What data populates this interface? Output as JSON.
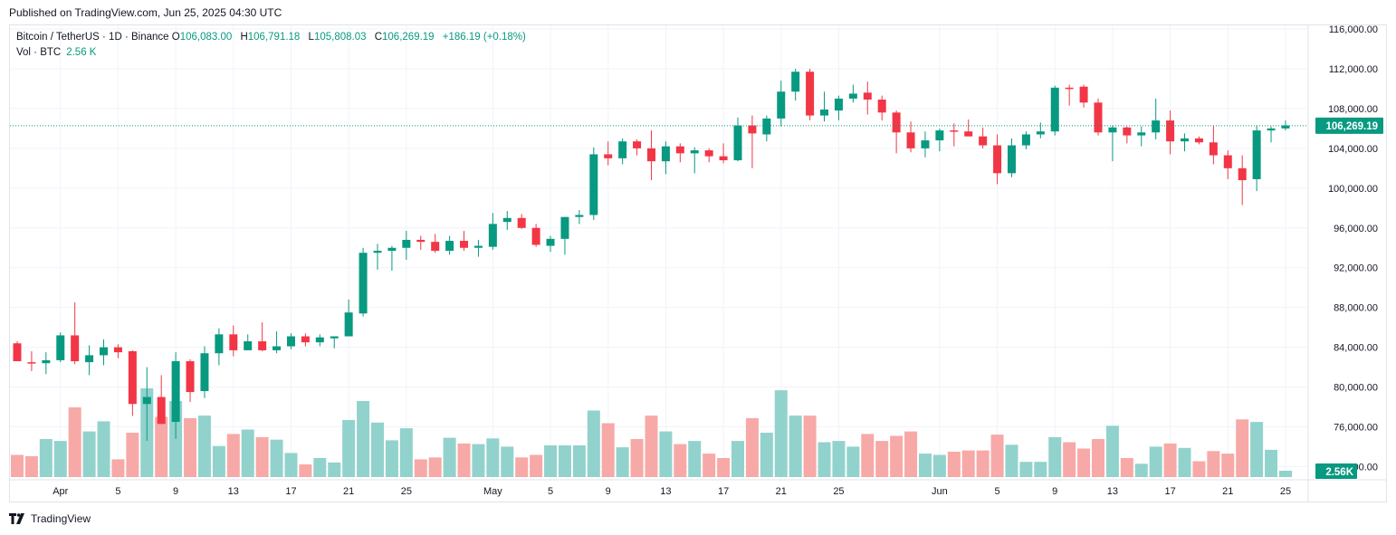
{
  "header": {
    "published": "Published on TradingView.com, Jun 25, 2025 04:30 UTC"
  },
  "legend": {
    "symbol": "Bitcoin / TetherUS · 1D · Binance",
    "o_label": "O",
    "o_value": "106,083.00",
    "h_label": "H",
    "h_value": "106,791.18",
    "l_label": "L",
    "l_value": "105,808.03",
    "c_label": "C",
    "c_value": "106,269.19",
    "change": "+186.19 (+0.18%)",
    "vol_label": "Vol · BTC",
    "vol_value": "2.56 K"
  },
  "footer": {
    "brand": "TradingView",
    "logo_icon": "tradingview-logo-icon"
  },
  "colors": {
    "up": "#089981",
    "down": "#f23645",
    "vol_up": "#92d2cc",
    "vol_down": "#f7a9a7"
  },
  "chart_data": {
    "type": "candlestick",
    "price_axis": {
      "ticks": [
        72000,
        76000,
        80000,
        84000,
        88000,
        92000,
        96000,
        100000,
        104000,
        108000,
        112000,
        116000
      ],
      "tick_labels": [
        "72,000.00",
        "76,000.00",
        "80,000.00",
        "84,000.00",
        "88,000.00",
        "92,000.00",
        "96,000.00",
        "100,000.00",
        "104,000.00",
        "108,000.00",
        "112,000.00",
        "116,000.00"
      ],
      "last_price": 106269.19,
      "last_price_label": "106,269.19",
      "last_volume_label": "2.56K"
    },
    "x_axis": {
      "labels": [
        {
          "index": 3,
          "text": "Apr"
        },
        {
          "index": 7,
          "text": "5"
        },
        {
          "index": 11,
          "text": "9"
        },
        {
          "index": 15,
          "text": "13"
        },
        {
          "index": 19,
          "text": "17"
        },
        {
          "index": 23,
          "text": "21"
        },
        {
          "index": 27,
          "text": "25"
        },
        {
          "index": 33,
          "text": "May"
        },
        {
          "index": 37,
          "text": "5"
        },
        {
          "index": 41,
          "text": "9"
        },
        {
          "index": 45,
          "text": "13"
        },
        {
          "index": 49,
          "text": "17"
        },
        {
          "index": 53,
          "text": "21"
        },
        {
          "index": 57,
          "text": "25"
        },
        {
          "index": 64,
          "text": "Jun"
        },
        {
          "index": 68,
          "text": "5"
        },
        {
          "index": 72,
          "text": "9"
        },
        {
          "index": 76,
          "text": "13"
        },
        {
          "index": 80,
          "text": "17"
        },
        {
          "index": 84,
          "text": "21"
        },
        {
          "index": 88,
          "text": "25"
        }
      ]
    },
    "candles": [
      {
        "o": 84400,
        "h": 84600,
        "l": 82600,
        "c": 82600,
        "v": 0.35
      },
      {
        "o": 82500,
        "h": 83600,
        "l": 81600,
        "c": 82400,
        "v": 0.33
      },
      {
        "o": 82400,
        "h": 83500,
        "l": 81300,
        "c": 82700,
        "v": 0.6
      },
      {
        "o": 82700,
        "h": 85500,
        "l": 82500,
        "c": 85200,
        "v": 0.57
      },
      {
        "o": 85200,
        "h": 88500,
        "l": 82300,
        "c": 82600,
        "v": 1.1
      },
      {
        "o": 82500,
        "h": 84200,
        "l": 81200,
        "c": 83200,
        "v": 0.72
      },
      {
        "o": 83200,
        "h": 84800,
        "l": 82200,
        "c": 84000,
        "v": 0.88
      },
      {
        "o": 84000,
        "h": 84300,
        "l": 82900,
        "c": 83500,
        "v": 0.28
      },
      {
        "o": 83600,
        "h": 83700,
        "l": 77100,
        "c": 78300,
        "v": 0.7
      },
      {
        "o": 78300,
        "h": 82000,
        "l": 74600,
        "c": 79000,
        "v": 1.4
      },
      {
        "o": 79000,
        "h": 81200,
        "l": 76300,
        "c": 76300,
        "v": 0.95
      },
      {
        "o": 76500,
        "h": 83500,
        "l": 74800,
        "c": 82600,
        "v": 1.2
      },
      {
        "o": 82600,
        "h": 82800,
        "l": 78500,
        "c": 79500,
        "v": 0.93
      },
      {
        "o": 79600,
        "h": 84100,
        "l": 78900,
        "c": 83400,
        "v": 0.97
      },
      {
        "o": 83400,
        "h": 85900,
        "l": 82200,
        "c": 85300,
        "v": 0.49
      },
      {
        "o": 85300,
        "h": 86200,
        "l": 83100,
        "c": 83700,
        "v": 0.68
      },
      {
        "o": 83700,
        "h": 85300,
        "l": 83700,
        "c": 84600,
        "v": 0.75
      },
      {
        "o": 84600,
        "h": 86500,
        "l": 83600,
        "c": 83700,
        "v": 0.63
      },
      {
        "o": 83700,
        "h": 85600,
        "l": 83400,
        "c": 84100,
        "v": 0.59
      },
      {
        "o": 84100,
        "h": 85400,
        "l": 83800,
        "c": 85100,
        "v": 0.38
      },
      {
        "o": 85100,
        "h": 85400,
        "l": 84100,
        "c": 84500,
        "v": 0.2
      },
      {
        "o": 84500,
        "h": 85300,
        "l": 84100,
        "c": 85000,
        "v": 0.3
      },
      {
        "o": 84900,
        "h": 85100,
        "l": 83900,
        "c": 85100,
        "v": 0.23
      },
      {
        "o": 85100,
        "h": 88800,
        "l": 85100,
        "c": 87500,
        "v": 0.9
      },
      {
        "o": 87400,
        "h": 94000,
        "l": 87100,
        "c": 93500,
        "v": 1.2
      },
      {
        "o": 93500,
        "h": 94400,
        "l": 91800,
        "c": 93700,
        "v": 0.86
      },
      {
        "o": 93700,
        "h": 94200,
        "l": 91700,
        "c": 94000,
        "v": 0.58
      },
      {
        "o": 94000,
        "h": 95700,
        "l": 92800,
        "c": 94800,
        "v": 0.77
      },
      {
        "o": 94800,
        "h": 95200,
        "l": 93800,
        "c": 94600,
        "v": 0.28
      },
      {
        "o": 94600,
        "h": 95400,
        "l": 93500,
        "c": 93700,
        "v": 0.31
      },
      {
        "o": 93700,
        "h": 95200,
        "l": 93300,
        "c": 94700,
        "v": 0.62
      },
      {
        "o": 94700,
        "h": 95700,
        "l": 93700,
        "c": 94000,
        "v": 0.53
      },
      {
        "o": 94000,
        "h": 94800,
        "l": 93100,
        "c": 94200,
        "v": 0.52
      },
      {
        "o": 94100,
        "h": 97500,
        "l": 93800,
        "c": 96400,
        "v": 0.61
      },
      {
        "o": 96600,
        "h": 97700,
        "l": 95800,
        "c": 97000,
        "v": 0.48
      },
      {
        "o": 97000,
        "h": 97400,
        "l": 95900,
        "c": 96000,
        "v": 0.31
      },
      {
        "o": 96000,
        "h": 96400,
        "l": 94100,
        "c": 94300,
        "v": 0.35
      },
      {
        "o": 94200,
        "h": 95200,
        "l": 93600,
        "c": 94900,
        "v": 0.5
      },
      {
        "o": 94900,
        "h": 97100,
        "l": 93300,
        "c": 97100,
        "v": 0.5
      },
      {
        "o": 97100,
        "h": 97800,
        "l": 96400,
        "c": 97300,
        "v": 0.5
      },
      {
        "o": 97300,
        "h": 104100,
        "l": 96800,
        "c": 103400,
        "v": 1.05
      },
      {
        "o": 103400,
        "h": 104700,
        "l": 102300,
        "c": 103000,
        "v": 0.85
      },
      {
        "o": 103000,
        "h": 105000,
        "l": 102400,
        "c": 104700,
        "v": 0.47
      },
      {
        "o": 104700,
        "h": 104900,
        "l": 103300,
        "c": 104000,
        "v": 0.6
      },
      {
        "o": 104000,
        "h": 105800,
        "l": 100800,
        "c": 102700,
        "v": 0.97
      },
      {
        "o": 102700,
        "h": 104700,
        "l": 101400,
        "c": 104200,
        "v": 0.72
      },
      {
        "o": 104200,
        "h": 104500,
        "l": 102600,
        "c": 103500,
        "v": 0.52
      },
      {
        "o": 103500,
        "h": 104100,
        "l": 101500,
        "c": 103800,
        "v": 0.57
      },
      {
        "o": 103800,
        "h": 104000,
        "l": 102600,
        "c": 103200,
        "v": 0.37
      },
      {
        "o": 103200,
        "h": 104500,
        "l": 102500,
        "c": 102800,
        "v": 0.3
      },
      {
        "o": 102800,
        "h": 107100,
        "l": 102700,
        "c": 106300,
        "v": 0.57
      },
      {
        "o": 106300,
        "h": 107300,
        "l": 102000,
        "c": 105500,
        "v": 0.93
      },
      {
        "o": 105400,
        "h": 107300,
        "l": 104700,
        "c": 107000,
        "v": 0.7
      },
      {
        "o": 107000,
        "h": 110800,
        "l": 106200,
        "c": 109700,
        "v": 1.37
      },
      {
        "o": 109700,
        "h": 112000,
        "l": 108800,
        "c": 111700,
        "v": 0.97
      },
      {
        "o": 111700,
        "h": 112000,
        "l": 106800,
        "c": 107300,
        "v": 0.97
      },
      {
        "o": 107300,
        "h": 109700,
        "l": 106700,
        "c": 107900,
        "v": 0.55
      },
      {
        "o": 107800,
        "h": 109300,
        "l": 106800,
        "c": 109000,
        "v": 0.57
      },
      {
        "o": 109000,
        "h": 110400,
        "l": 108600,
        "c": 109500,
        "v": 0.48
      },
      {
        "o": 109600,
        "h": 110700,
        "l": 107400,
        "c": 108900,
        "v": 0.68
      },
      {
        "o": 108900,
        "h": 109300,
        "l": 106800,
        "c": 107600,
        "v": 0.57
      },
      {
        "o": 107600,
        "h": 107800,
        "l": 103500,
        "c": 105600,
        "v": 0.65
      },
      {
        "o": 105600,
        "h": 106700,
        "l": 103600,
        "c": 104000,
        "v": 0.72
      },
      {
        "o": 104000,
        "h": 105700,
        "l": 103100,
        "c": 104800,
        "v": 0.37
      },
      {
        "o": 104800,
        "h": 106000,
        "l": 103700,
        "c": 105800,
        "v": 0.35
      },
      {
        "o": 105800,
        "h": 106500,
        "l": 104200,
        "c": 105700,
        "v": 0.4
      },
      {
        "o": 105700,
        "h": 106900,
        "l": 105300,
        "c": 105200,
        "v": 0.42
      },
      {
        "o": 105200,
        "h": 106100,
        "l": 104000,
        "c": 104300,
        "v": 0.42
      },
      {
        "o": 104300,
        "h": 105400,
        "l": 100400,
        "c": 101500,
        "v": 0.67
      },
      {
        "o": 101500,
        "h": 105000,
        "l": 101100,
        "c": 104300,
        "v": 0.51
      },
      {
        "o": 104300,
        "h": 105700,
        "l": 103900,
        "c": 105400,
        "v": 0.24
      },
      {
        "o": 105400,
        "h": 106600,
        "l": 105000,
        "c": 105700,
        "v": 0.24
      },
      {
        "o": 105700,
        "h": 110300,
        "l": 105300,
        "c": 110100,
        "v": 0.63
      },
      {
        "o": 110100,
        "h": 110400,
        "l": 108300,
        "c": 110000,
        "v": 0.55
      },
      {
        "o": 110200,
        "h": 110400,
        "l": 108100,
        "c": 108600,
        "v": 0.45
      },
      {
        "o": 108600,
        "h": 109000,
        "l": 105300,
        "c": 105600,
        "v": 0.6
      },
      {
        "o": 105600,
        "h": 106300,
        "l": 102700,
        "c": 106100,
        "v": 0.81
      },
      {
        "o": 106100,
        "h": 106200,
        "l": 104500,
        "c": 105300,
        "v": 0.3
      },
      {
        "o": 105300,
        "h": 106200,
        "l": 104200,
        "c": 105600,
        "v": 0.21
      },
      {
        "o": 105600,
        "h": 109000,
        "l": 104900,
        "c": 106800,
        "v": 0.48
      },
      {
        "o": 106800,
        "h": 107800,
        "l": 103400,
        "c": 104700,
        "v": 0.53
      },
      {
        "o": 104700,
        "h": 105500,
        "l": 103700,
        "c": 105000,
        "v": 0.46
      },
      {
        "o": 105000,
        "h": 105200,
        "l": 104400,
        "c": 104600,
        "v": 0.25
      },
      {
        "o": 104600,
        "h": 106300,
        "l": 102400,
        "c": 103300,
        "v": 0.41
      },
      {
        "o": 103300,
        "h": 103800,
        "l": 100900,
        "c": 102000,
        "v": 0.37
      },
      {
        "o": 102000,
        "h": 103300,
        "l": 98300,
        "c": 100800,
        "v": 0.91
      },
      {
        "o": 100900,
        "h": 106300,
        "l": 99700,
        "c": 105800,
        "v": 0.87
      },
      {
        "o": 105800,
        "h": 106200,
        "l": 104600,
        "c": 106000,
        "v": 0.43
      },
      {
        "o": 106000,
        "h": 106800,
        "l": 105800,
        "c": 106300,
        "v": 0.1
      }
    ]
  }
}
